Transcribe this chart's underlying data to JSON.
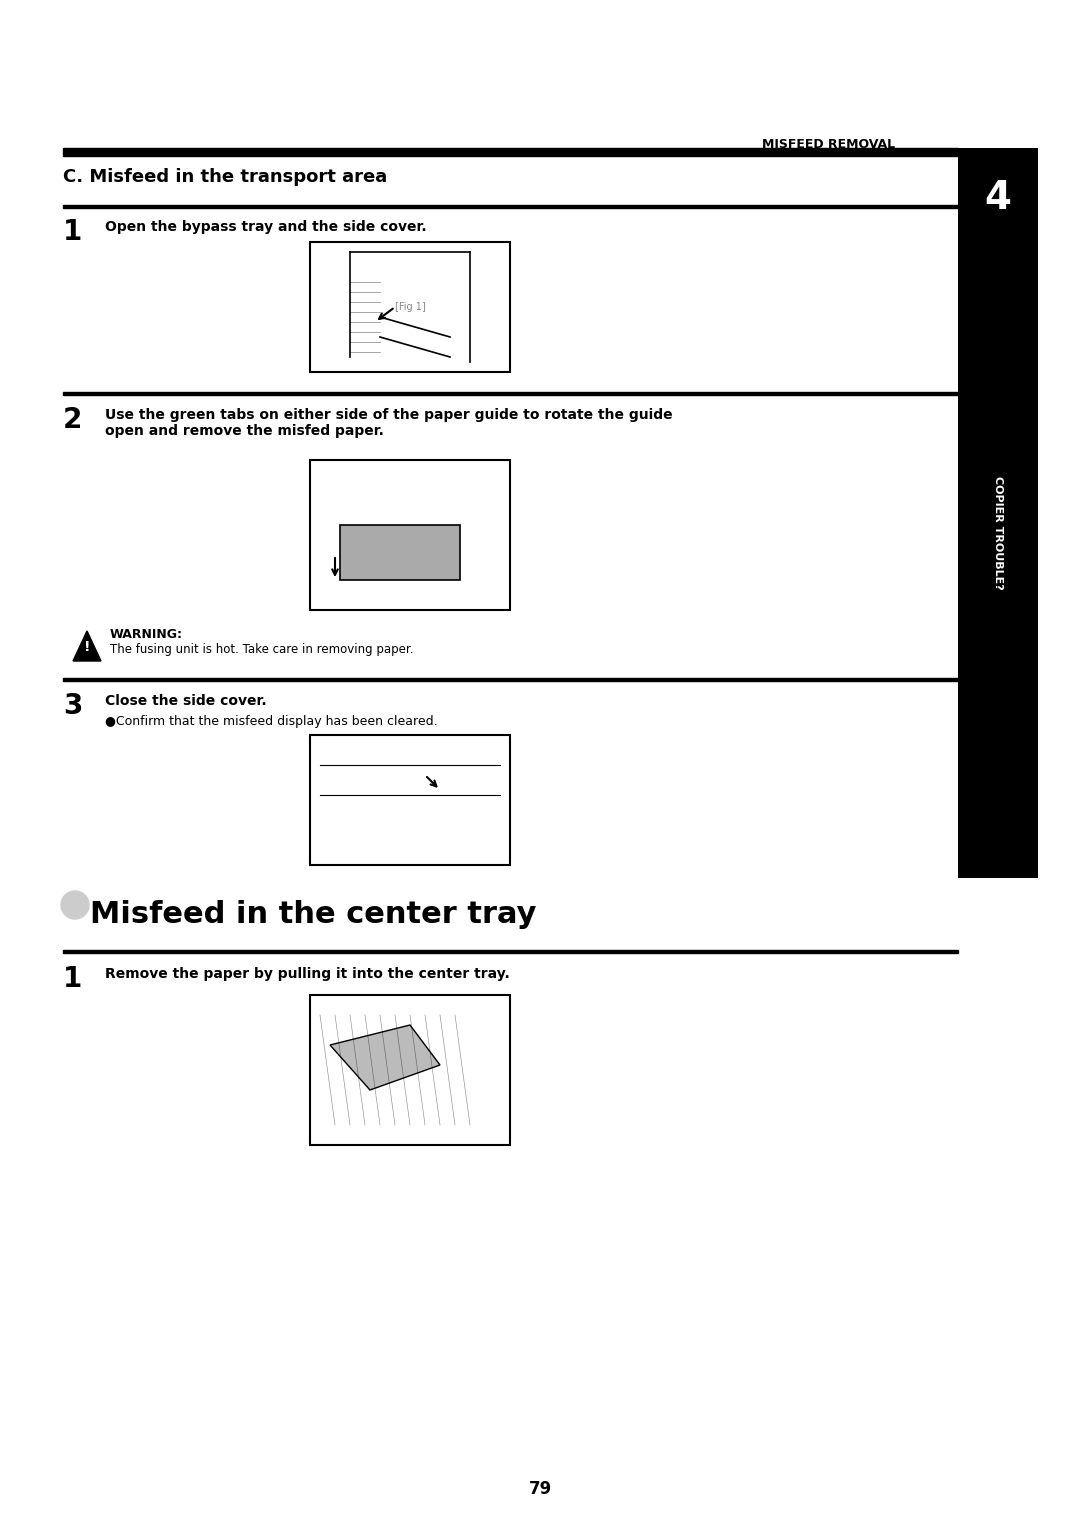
{
  "bg_color": "#ffffff",
  "page_width": 10.8,
  "page_height": 15.28,
  "header_text": "MISFEED REMOVAL",
  "section_c_title": "C. Misfeed in the transport area",
  "step1_num": "1",
  "step1_text": "Open the bypass tray and the side cover.",
  "step2_num": "2",
  "step2_text": "Use the green tabs on either side of the paper guide to rotate the guide\nopen and remove the misfed paper.",
  "warning_title": "WARNING:",
  "warning_text": "The fusing unit is hot. Take care in removing paper.",
  "step3_num": "3",
  "step3_text": "Close the side cover.",
  "step3_sub": "●Confirm that the misfeed display has been cleared.",
  "section2_title": "Misfeed in the center tray",
  "step4_num": "1",
  "step4_text": "Remove the paper by pulling it into the center tray.",
  "page_num": "79",
  "sidebar_text": "COPIER TROUBLE?",
  "sidebar_num": "4",
  "header_line_color": "#000000",
  "section_line_color": "#000000",
  "sidebar_bg": "#000000",
  "sidebar_text_color": "#ffffff"
}
